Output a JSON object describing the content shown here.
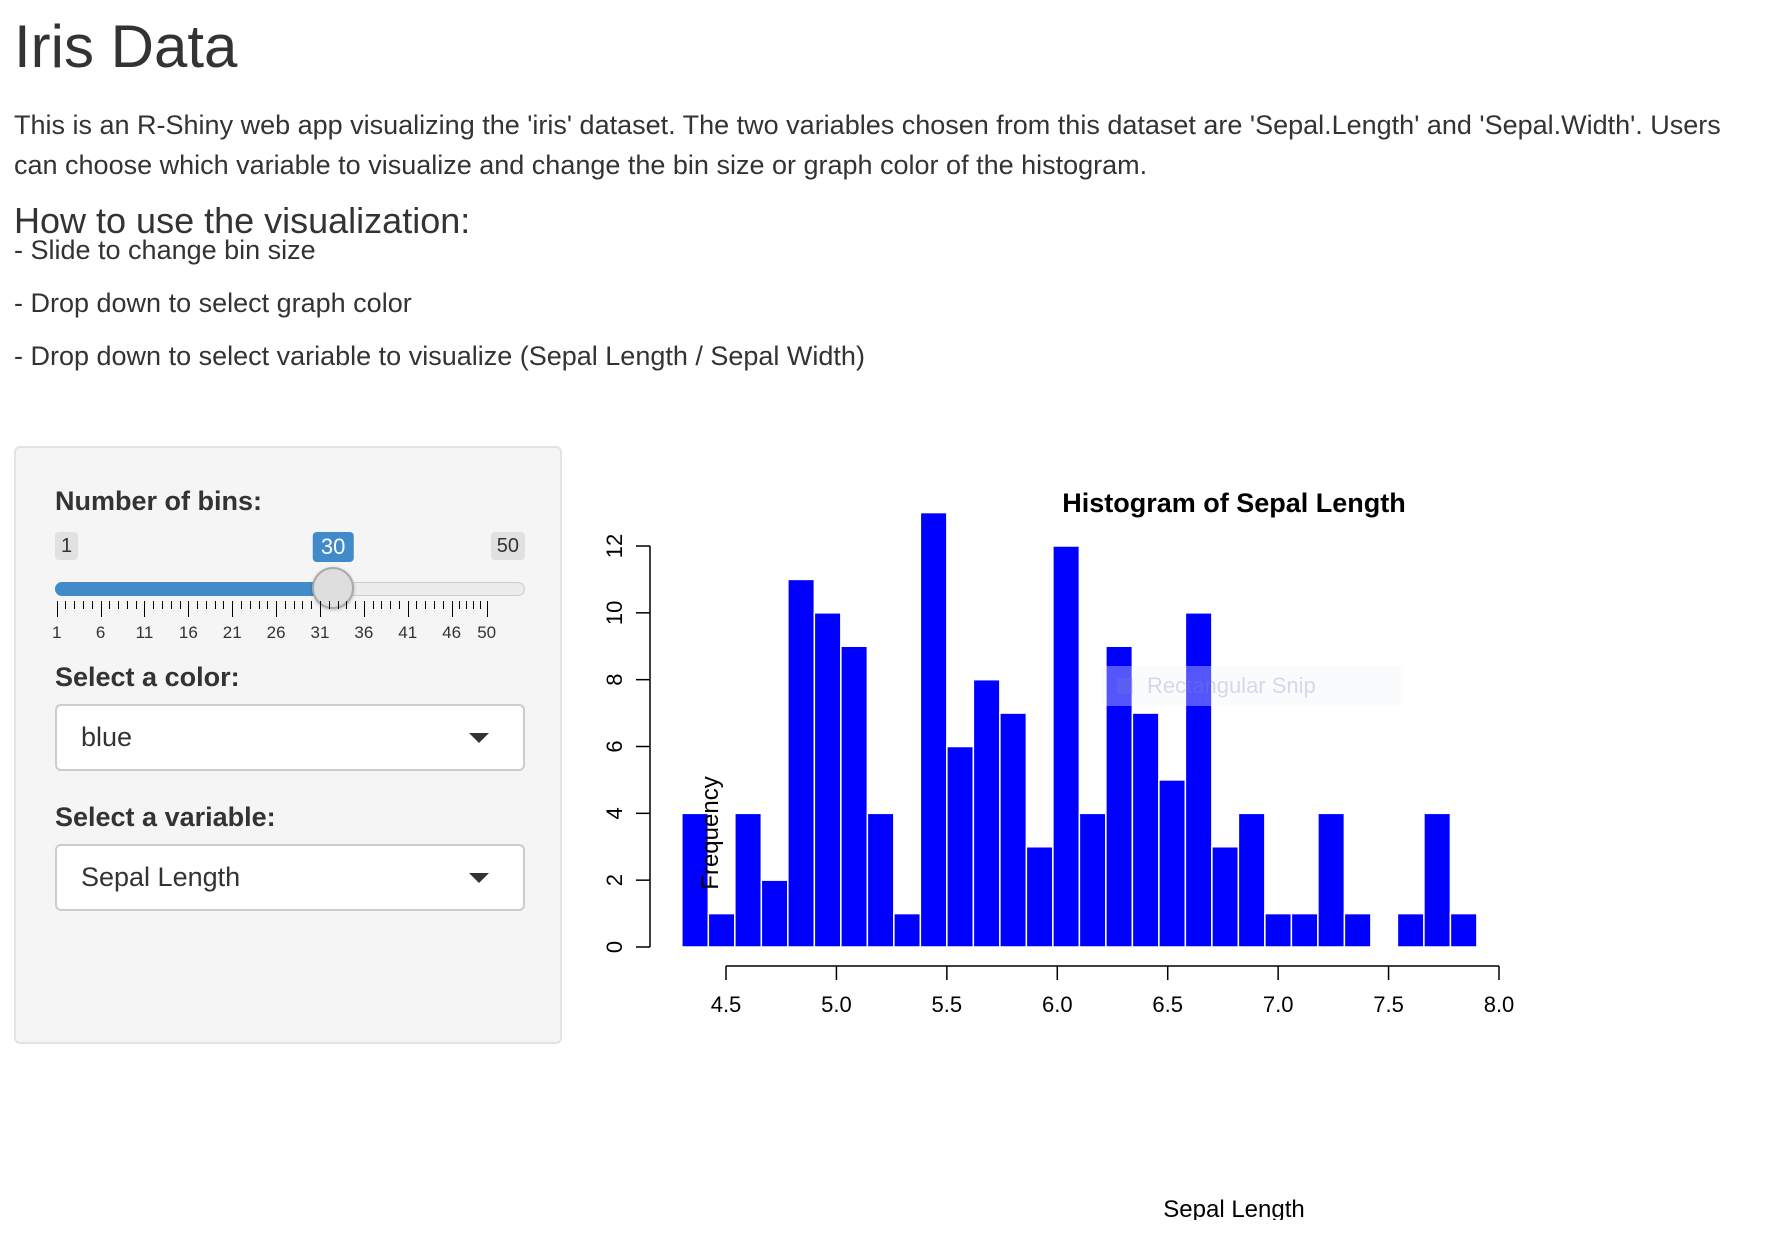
{
  "page": {
    "title": "Iris Data",
    "intro": "This is an R-Shiny web app visualizing the 'iris' dataset. The two variables chosen from this dataset are 'Sepal.Length' and 'Sepal.Width'. Users can choose which variable to visualize and change the bin size or graph color of the histogram.",
    "how_to_heading": "How to use the visualization:",
    "instructions": [
      "- Slide to change bin size",
      "- Drop down to select graph color",
      "- Drop down to select variable to visualize (Sepal Length / Sepal Width)"
    ]
  },
  "sidebar": {
    "bins": {
      "label": "Number of bins:",
      "min": 1,
      "max": 50,
      "value": 30,
      "tick_labels": [
        "1",
        "6",
        "11",
        "16",
        "21",
        "26",
        "31",
        "36",
        "41",
        "46",
        "50"
      ]
    },
    "color": {
      "label": "Select a color:",
      "value": "blue"
    },
    "variable": {
      "label": "Select a variable:",
      "value": "Sepal Length"
    }
  },
  "overlay": {
    "snip_label": "Rectangular Snip"
  },
  "colors": {
    "bar_fill": "#0000ff",
    "accent": "#428bca"
  },
  "chart_data": {
    "type": "bar",
    "title": "Histogram of Sepal Length",
    "xlabel": "Sepal Length",
    "ylabel": "Frequency",
    "bin_start": 4.3,
    "bin_width": 0.12,
    "values": [
      4,
      1,
      4,
      2,
      11,
      10,
      9,
      4,
      1,
      13,
      6,
      8,
      7,
      3,
      12,
      4,
      9,
      7,
      5,
      10,
      3,
      4,
      1,
      1,
      4,
      1,
      0,
      1,
      4,
      1
    ],
    "xlim": [
      4.5,
      8.0
    ],
    "ylim": [
      0,
      12
    ],
    "x_ticks": [
      "4.5",
      "5.0",
      "5.5",
      "6.0",
      "6.5",
      "7.0",
      "7.5",
      "8.0"
    ],
    "y_ticks": [
      "0",
      "2",
      "4",
      "6",
      "8",
      "10",
      "12"
    ],
    "grid": false,
    "legend": "none"
  }
}
